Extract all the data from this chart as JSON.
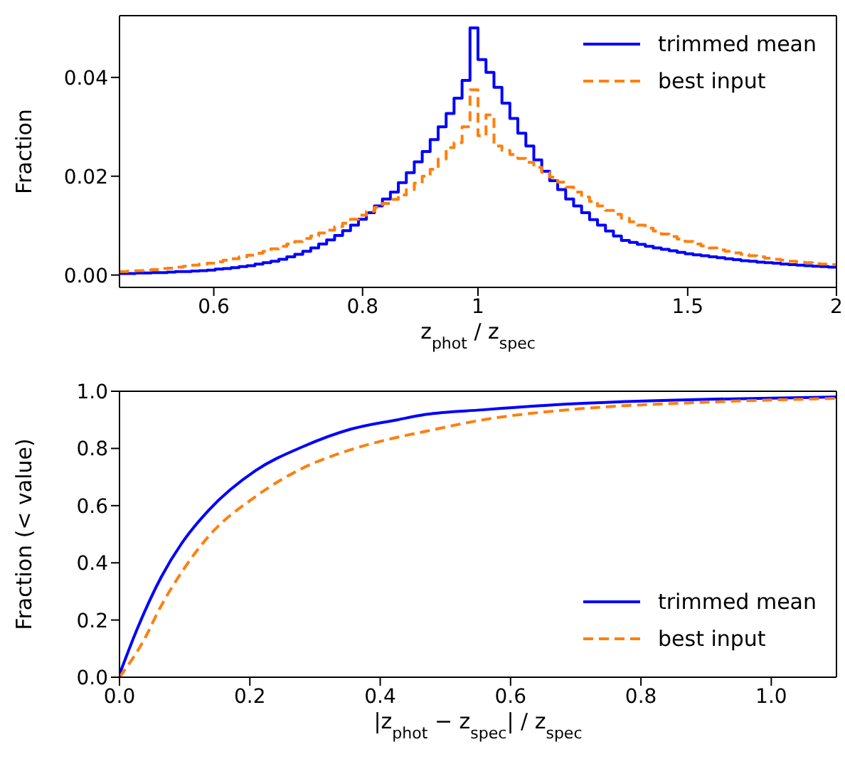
{
  "chart_data": [
    {
      "type": "histogram",
      "xlabel": "z$_{phot}$ / z$_{spec}$",
      "ylabel": "Fraction",
      "log": "x",
      "legend": "top right",
      "bins": [
        0.5,
        0.5078,
        0.5157,
        0.5237,
        0.5318,
        0.5401,
        0.5485,
        0.557,
        0.5656,
        0.5744,
        0.5833,
        0.5924,
        0.6016,
        0.6109,
        0.6204,
        0.63,
        0.6398,
        0.6497,
        0.6598,
        0.67,
        0.6804,
        0.691,
        0.7017,
        0.7126,
        0.7237,
        0.7349,
        0.7463,
        0.7579,
        0.7697,
        0.7816,
        0.7937,
        0.806,
        0.8186,
        0.8313,
        0.8442,
        0.8573,
        0.8706,
        0.8841,
        0.8978,
        0.9117,
        0.9259,
        0.9403,
        0.9548,
        0.9697,
        0.9847,
        1.0,
        1.0156,
        1.0314,
        1.0474,
        1.0636,
        1.0801,
        1.097,
        1.114,
        1.1312,
        1.1487,
        1.1666,
        1.1848,
        1.2031,
        1.2218,
        1.2408,
        1.26,
        1.2796,
        1.2994,
        1.3196,
        1.34,
        1.3608,
        1.382,
        1.4034,
        1.4252,
        1.4474,
        1.4698,
        1.4926,
        1.5158,
        1.5394,
        1.5632,
        1.5874,
        1.612,
        1.6372,
        1.6626,
        1.6884,
        1.7146,
        1.7412,
        1.7682,
        1.7956,
        1.8234,
        1.8518,
        1.8806,
        1.9096,
        1.9394,
        1.9694,
        2.0
      ],
      "series": [
        {
          "name": "trimmed mean",
          "color": "#0000ff",
          "line_style": "solid",
          "values": [
            0.0003,
            0.0003,
            0.0004,
            0.0004,
            0.0005,
            0.0005,
            0.0006,
            0.0007,
            0.0007,
            0.0008,
            0.0009,
            0.001,
            0.0012,
            0.0013,
            0.0015,
            0.0017,
            0.0019,
            0.0022,
            0.0025,
            0.0028,
            0.0032,
            0.0037,
            0.0042,
            0.0048,
            0.0055,
            0.0063,
            0.0071,
            0.008,
            0.009,
            0.0101,
            0.0113,
            0.0126,
            0.014,
            0.0154,
            0.0168,
            0.0187,
            0.0207,
            0.0229,
            0.025,
            0.0274,
            0.03,
            0.0327,
            0.0358,
            0.0394,
            0.05,
            0.0436,
            0.041,
            0.038,
            0.0348,
            0.0317,
            0.0287,
            0.0261,
            0.0233,
            0.021,
            0.0191,
            0.0173,
            0.0154,
            0.014,
            0.0126,
            0.0112,
            0.0101,
            0.0089,
            0.0079,
            0.007,
            0.0066,
            0.0062,
            0.0058,
            0.0055,
            0.0052,
            0.0049,
            0.0046,
            0.0043,
            0.0041,
            0.0039,
            0.0037,
            0.0035,
            0.0033,
            0.0031,
            0.0029,
            0.0028,
            0.0026,
            0.0025,
            0.0024,
            0.0022,
            0.0021,
            0.002,
            0.0019,
            0.0018,
            0.0017,
            0.0016
          ]
        },
        {
          "name": "best input",
          "color": "#ff7f0e",
          "line_style": "dashed",
          "values": [
            0.0007,
            0.0008,
            0.0009,
            0.001,
            0.0011,
            0.0013,
            0.0014,
            0.0016,
            0.0018,
            0.002,
            0.0022,
            0.0024,
            0.0027,
            0.003,
            0.0033,
            0.0037,
            0.004,
            0.0044,
            0.0048,
            0.0053,
            0.0058,
            0.0063,
            0.0068,
            0.0074,
            0.0079,
            0.0085,
            0.0091,
            0.0098,
            0.0105,
            0.0113,
            0.0121,
            0.0129,
            0.0137,
            0.0145,
            0.0153,
            0.0162,
            0.0173,
            0.0186,
            0.02,
            0.0214,
            0.0235,
            0.0258,
            0.0268,
            0.03,
            0.0375,
            0.0282,
            0.0324,
            0.0261,
            0.0252,
            0.0244,
            0.0236,
            0.0228,
            0.0218,
            0.0208,
            0.0198,
            0.0188,
            0.0178,
            0.0168,
            0.0158,
            0.0149,
            0.014,
            0.0131,
            0.0123,
            0.0115,
            0.0108,
            0.0101,
            0.0095,
            0.0089,
            0.0083,
            0.0078,
            0.0073,
            0.0068,
            0.0063,
            0.0059,
            0.0055,
            0.0051,
            0.0048,
            0.0045,
            0.0042,
            0.0039,
            0.0037,
            0.0034,
            0.0032,
            0.003,
            0.0028,
            0.0026,
            0.0025,
            0.0023,
            0.0022,
            0.0021
          ]
        }
      ],
      "xlim": [
        0.5,
        2
      ],
      "xticks": [
        0.6,
        0.8,
        1,
        1.5,
        2
      ],
      "ylim": [
        -0.0025,
        0.0525
      ],
      "yticks": [
        {
          "value": 0,
          "label": "0.00"
        },
        {
          "value": 0.02,
          "label": "0.02"
        },
        {
          "value": 0.04,
          "label": "0.04"
        }
      ]
    },
    {
      "type": "line",
      "xlabel": "|z$_{phot}$ − z$_{spec}$| / z$_{spec}$",
      "ylabel": "Fraction (< value)",
      "legend": "bottom right",
      "series": [
        {
          "name": "trimmed mean",
          "color": "#0000ff",
          "line_style": "solid",
          "x": [
            0,
            0.027,
            0.064,
            0.1,
            0.136,
            0.209,
            0.281,
            0.354,
            0.426,
            0.47,
            0.557,
            0.687,
            0.904,
            1.1
          ],
          "values": [
            0.01,
            0.168,
            0.35,
            0.483,
            0.582,
            0.723,
            0.806,
            0.867,
            0.9,
            0.919,
            0.935,
            0.955,
            0.972,
            0.98
          ]
        },
        {
          "name": "best input",
          "color": "#ff7f0e",
          "line_style": "dashed",
          "x": [
            0,
            0.035,
            0.064,
            0.1,
            0.136,
            0.209,
            0.281,
            0.354,
            0.426,
            0.47,
            0.557,
            0.687,
            0.904,
            1.1
          ],
          "values": [
            0.0,
            0.12,
            0.25,
            0.383,
            0.491,
            0.632,
            0.731,
            0.795,
            0.839,
            0.86,
            0.9,
            0.935,
            0.962,
            0.975
          ]
        }
      ],
      "xlim": [
        0,
        1.1
      ],
      "xticks": [
        {
          "value": 0,
          "label": "0.0"
        },
        {
          "value": 0.2,
          "label": "0.2"
        },
        {
          "value": 0.4,
          "label": "0.4"
        },
        {
          "value": 0.6,
          "label": "0.6"
        },
        {
          "value": 0.8,
          "label": "0.8"
        },
        {
          "value": 1.0,
          "label": "1.0"
        }
      ],
      "ylim": [
        0,
        1
      ],
      "yticks": [
        {
          "value": 0,
          "label": "0.0"
        },
        {
          "value": 0.2,
          "label": "0.2"
        },
        {
          "value": 0.4,
          "label": "0.4"
        },
        {
          "value": 0.6,
          "label": "0.6"
        },
        {
          "value": 0.8,
          "label": "0.8"
        },
        {
          "value": 1,
          "label": "1.0"
        }
      ]
    }
  ]
}
